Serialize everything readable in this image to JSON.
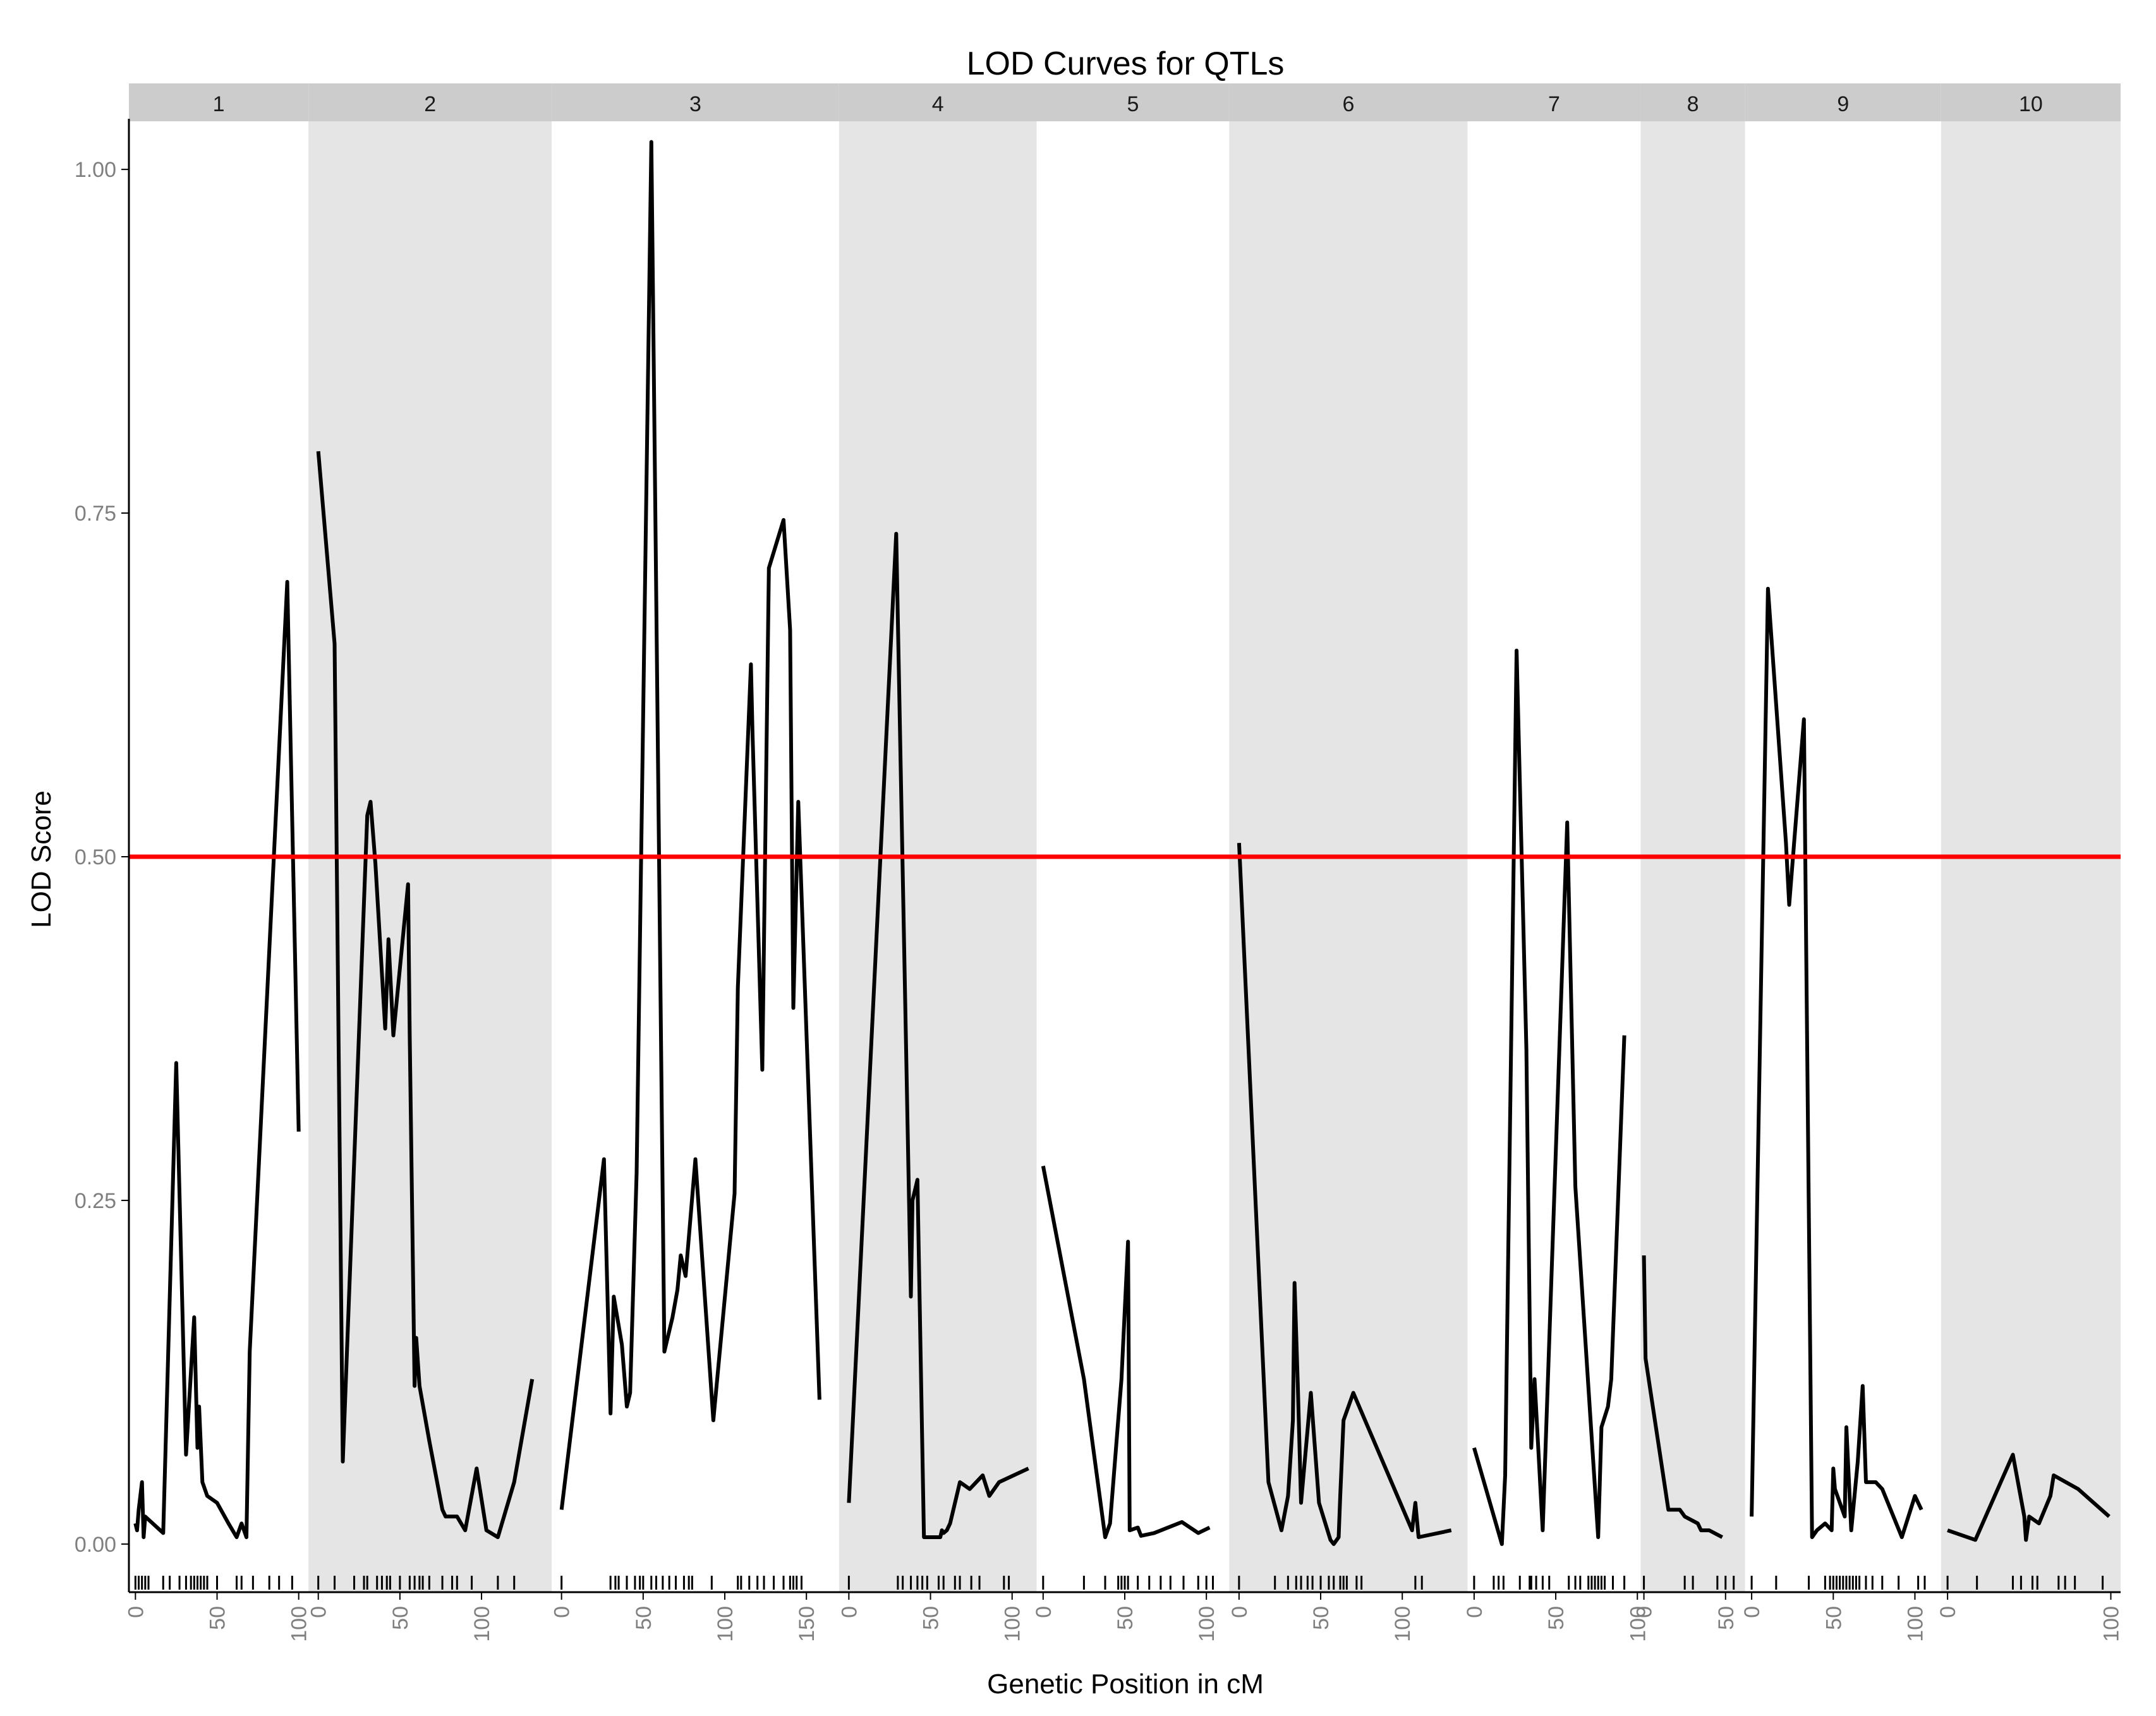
{
  "chart_data": {
    "type": "line",
    "title": "LOD Curves for QTLs",
    "xlabel": "Genetic Position in cM",
    "ylabel": "LOD Score",
    "ylim": [
      -0.035,
      1.035
    ],
    "yticks": [
      0.0,
      0.25,
      0.5,
      0.75,
      1.0
    ],
    "ytick_labels": [
      "0.00",
      "0.25",
      "0.50",
      "0.75",
      "1.00"
    ],
    "threshold": {
      "value": 0.5,
      "color": "#ff0000"
    },
    "line_color": "#000000",
    "panel_colors": [
      "#ffffff",
      "#e5e5e5"
    ],
    "strip_color": "#cccccc",
    "grid": false,
    "panels": [
      {
        "label": "1",
        "xlim": [
          -4,
          106
        ],
        "ticks": [
          0,
          50,
          100
        ],
        "tick_labels": [
          "0",
          "50",
          "100"
        ],
        "markers": [
          0,
          2,
          4,
          6,
          8,
          17,
          21,
          27,
          31,
          34,
          36,
          38,
          40,
          42,
          44,
          50,
          62,
          65,
          72,
          82,
          88,
          96
        ],
        "x": [
          0,
          1,
          2,
          4,
          5,
          6,
          17,
          25,
          31,
          36,
          38,
          39,
          41,
          44,
          50,
          57,
          62,
          65,
          68,
          70,
          93,
          100
        ],
        "y": [
          0.015,
          0.01,
          0.025,
          0.045,
          0.005,
          0.02,
          0.008,
          0.35,
          0.065,
          0.165,
          0.07,
          0.1,
          0.045,
          0.035,
          0.03,
          0.015,
          0.005,
          0.015,
          0.005,
          0.14,
          0.7,
          0.3
        ]
      },
      {
        "label": "2",
        "xlim": [
          -6,
          143
        ],
        "ticks": [
          0,
          50,
          100
        ],
        "tick_labels": [
          "0",
          "50",
          "100"
        ],
        "markers": [
          0,
          10,
          22,
          28,
          30,
          36,
          39,
          42,
          44,
          50,
          56,
          59,
          62,
          64,
          68,
          76,
          82,
          85,
          94,
          110,
          120
        ],
        "x": [
          0,
          10,
          15,
          30,
          32,
          35,
          41,
          43,
          46,
          55,
          56,
          59,
          60,
          62,
          68,
          76,
          78,
          85,
          90,
          97,
          103,
          110,
          120,
          131
        ],
        "y": [
          0.795,
          0.655,
          0.06,
          0.53,
          0.54,
          0.495,
          0.375,
          0.44,
          0.37,
          0.48,
          0.37,
          0.115,
          0.15,
          0.115,
          0.075,
          0.025,
          0.02,
          0.02,
          0.01,
          0.055,
          0.01,
          0.005,
          0.045,
          0.12
        ]
      },
      {
        "label": "3",
        "xlim": [
          -6,
          170
        ],
        "ticks": [
          0,
          50,
          100,
          150
        ],
        "tick_labels": [
          "0",
          "50",
          "100",
          "150"
        ],
        "markers": [
          0,
          30,
          33,
          35,
          40,
          45,
          48,
          50,
          55,
          58,
          62,
          66,
          70,
          75,
          78,
          80,
          92,
          108,
          110,
          115,
          120,
          124,
          130,
          136,
          140,
          142,
          144,
          147
        ],
        "x": [
          0,
          26,
          30,
          32,
          37,
          40,
          42,
          46,
          55,
          63,
          68,
          71,
          73,
          76,
          82,
          93,
          106,
          108,
          116,
          117,
          123,
          127,
          136,
          140,
          142,
          145,
          158
        ],
        "y": [
          0.025,
          0.28,
          0.095,
          0.18,
          0.145,
          0.1,
          0.11,
          0.27,
          1.02,
          0.14,
          0.165,
          0.185,
          0.21,
          0.195,
          0.28,
          0.09,
          0.255,
          0.405,
          0.64,
          0.59,
          0.345,
          0.71,
          0.745,
          0.665,
          0.39,
          0.54,
          0.105
        ]
      },
      {
        "label": "4",
        "xlim": [
          -6,
          115
        ],
        "ticks": [
          0,
          50,
          100
        ],
        "tick_labels": [
          "0",
          "50",
          "100"
        ],
        "markers": [
          0,
          30,
          33,
          38,
          42,
          45,
          48,
          55,
          58,
          65,
          68,
          75,
          80,
          95,
          98
        ],
        "x": [
          0,
          29,
          38,
          39,
          42,
          46,
          56,
          57,
          58,
          60,
          62,
          68,
          74,
          82,
          86,
          92,
          110
        ],
        "y": [
          0.03,
          0.735,
          0.18,
          0.25,
          0.265,
          0.005,
          0.005,
          0.01,
          0.008,
          0.01,
          0.015,
          0.045,
          0.04,
          0.05,
          0.035,
          0.045,
          0.055
        ]
      },
      {
        "label": "5",
        "xlim": [
          -4,
          114
        ],
        "ticks": [
          0,
          50,
          100
        ],
        "tick_labels": [
          "0",
          "50",
          "100"
        ],
        "markers": [
          0,
          25,
          38,
          46,
          48,
          50,
          52,
          58,
          65,
          72,
          78,
          86,
          95,
          100,
          104
        ],
        "x": [
          0,
          25,
          38,
          41,
          48,
          52,
          53,
          58,
          60,
          68,
          85,
          95,
          102
        ],
        "y": [
          0.275,
          0.12,
          0.005,
          0.015,
          0.12,
          0.22,
          0.01,
          0.012,
          0.006,
          0.008,
          0.016,
          0.008,
          0.012
        ]
      },
      {
        "label": "6",
        "xlim": [
          -6,
          140
        ],
        "ticks": [
          0,
          50,
          100
        ],
        "tick_labels": [
          "0",
          "50",
          "100"
        ],
        "markers": [
          0,
          22,
          30,
          35,
          38,
          42,
          45,
          50,
          55,
          58,
          62,
          64,
          66,
          72,
          75,
          108,
          112
        ],
        "x": [
          0,
          18,
          26,
          30,
          33,
          34,
          36,
          38,
          44,
          49,
          56,
          58,
          61,
          62,
          64,
          70,
          106,
          108,
          110,
          130
        ],
        "y": [
          0.51,
          0.045,
          0.01,
          0.035,
          0.09,
          0.19,
          0.115,
          0.03,
          0.11,
          0.03,
          0.003,
          0.0,
          0.005,
          0.035,
          0.09,
          0.11,
          0.01,
          0.03,
          0.005,
          0.01
        ]
      },
      {
        "label": "7",
        "xlim": [
          -4,
          102
        ],
        "ticks": [
          0,
          50,
          100
        ],
        "tick_labels": [
          "0",
          "50",
          "100"
        ],
        "markers": [
          0,
          12,
          15,
          18,
          28,
          34,
          35,
          38,
          42,
          46,
          58,
          62,
          65,
          70,
          72,
          74,
          76,
          78,
          80,
          85,
          92
        ],
        "x": [
          0,
          17,
          19,
          26,
          32,
          35,
          37,
          42,
          57,
          62,
          76,
          78,
          82,
          84,
          92
        ],
        "y": [
          0.07,
          0.0,
          0.05,
          0.65,
          0.36,
          0.07,
          0.12,
          0.01,
          0.525,
          0.26,
          0.005,
          0.085,
          0.1,
          0.12,
          0.37
        ]
      },
      {
        "label": "8",
        "xlim": [
          -2,
          62
        ],
        "ticks": [
          0,
          50
        ],
        "tick_labels": [
          "0",
          "50"
        ],
        "markers": [
          0,
          25,
          30,
          45,
          50,
          55
        ],
        "x": [
          0,
          1,
          15,
          22,
          25,
          33,
          35,
          40,
          48
        ],
        "y": [
          0.21,
          0.135,
          0.025,
          0.025,
          0.02,
          0.015,
          0.01,
          0.01,
          0.005
        ]
      },
      {
        "label": "9",
        "xlim": [
          -4,
          116
        ],
        "ticks": [
          0,
          50,
          100
        ],
        "tick_labels": [
          "0",
          "50",
          "100"
        ],
        "markers": [
          0,
          15,
          35,
          45,
          48,
          50,
          52,
          54,
          56,
          58,
          60,
          62,
          64,
          66,
          70,
          74,
          80,
          90,
          102,
          106
        ],
        "x": [
          0,
          10,
          21,
          23,
          24,
          32,
          37,
          40,
          45,
          49,
          50,
          51,
          57,
          58,
          61,
          65,
          68,
          70,
          76,
          80,
          92,
          100,
          104
        ],
        "y": [
          0.02,
          0.695,
          0.51,
          0.465,
          0.48,
          0.6,
          0.005,
          0.01,
          0.015,
          0.01,
          0.055,
          0.04,
          0.02,
          0.085,
          0.01,
          0.06,
          0.115,
          0.045,
          0.045,
          0.04,
          0.005,
          0.035,
          0.025
        ]
      },
      {
        "label": "10",
        "xlim": [
          -4,
          106
        ],
        "ticks": [
          0,
          100
        ],
        "tick_labels": [
          "0",
          "100"
        ],
        "markers": [
          0,
          18,
          40,
          45,
          52,
          55,
          68,
          72,
          78,
          95
        ],
        "x": [
          0,
          17,
          40,
          47,
          48,
          50,
          56,
          63,
          65,
          80,
          99
        ],
        "y": [
          0.01,
          0.003,
          0.065,
          0.02,
          0.003,
          0.02,
          0.015,
          0.035,
          0.05,
          0.04,
          0.02
        ]
      }
    ]
  }
}
